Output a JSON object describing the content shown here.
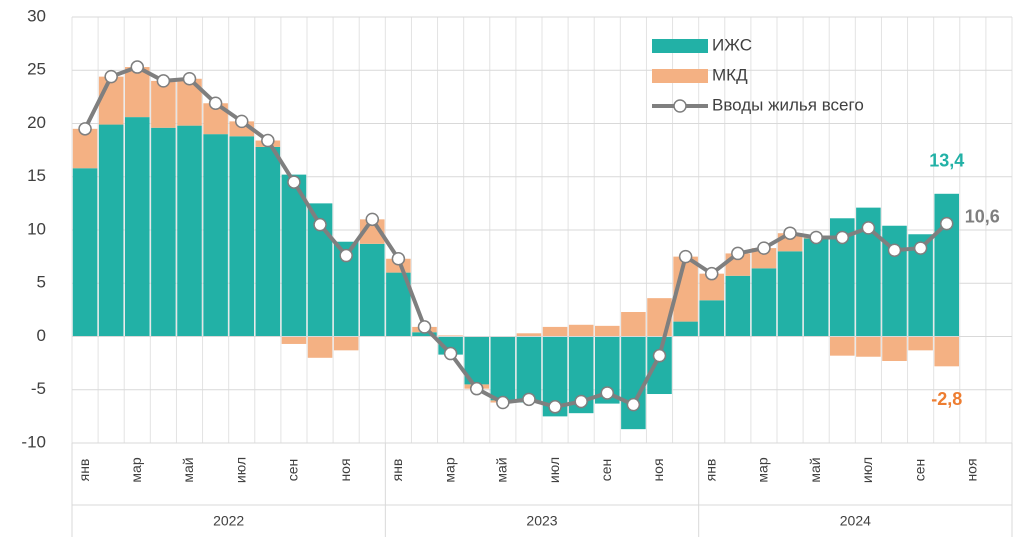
{
  "chart_data": {
    "type": "bar",
    "stacked": true,
    "categories": [
      "янв",
      null,
      "мар",
      null,
      "май",
      null,
      "июл",
      null,
      "сен",
      null,
      "ноя",
      null,
      "янв",
      null,
      "мар",
      null,
      "май",
      null,
      "июл",
      null,
      "сен",
      null,
      "ноя",
      null,
      "янв",
      null,
      "мар",
      null,
      "май",
      null,
      "июл",
      null,
      "сен",
      null,
      "ноя",
      null
    ],
    "years": [
      "2022",
      "2023",
      "2024"
    ],
    "ylim": [
      -10,
      30
    ],
    "yticks": [
      -10,
      -5,
      0,
      5,
      10,
      15,
      20,
      25,
      30
    ],
    "grid": true,
    "legend": "top-right",
    "series": [
      {
        "name": "ИЖС",
        "type": "bar",
        "color": "#22b1a6",
        "values": [
          15.8,
          19.9,
          20.6,
          19.6,
          19.8,
          19.0,
          18.8,
          17.8,
          15.2,
          12.5,
          8.9,
          8.7,
          6.0,
          0.4,
          -1.7,
          -4.5,
          -6.0,
          -6.2,
          -7.5,
          -7.2,
          -6.3,
          -8.7,
          -5.4,
          1.4,
          3.4,
          5.7,
          6.4,
          8.0,
          9.2,
          11.1,
          12.1,
          10.4,
          9.6,
          13.4,
          null,
          null
        ],
        "value_labels": [
          null,
          null,
          null,
          null,
          null,
          null,
          null,
          null,
          null,
          null,
          null,
          null,
          null,
          null,
          null,
          null,
          null,
          null,
          null,
          null,
          null,
          null,
          null,
          null,
          null,
          null,
          null,
          null,
          null,
          null,
          null,
          null,
          null,
          "13,4",
          null,
          null
        ]
      },
      {
        "name": "МКД",
        "type": "bar",
        "color": "#f4b183",
        "values": [
          3.7,
          4.5,
          4.7,
          4.4,
          4.4,
          2.9,
          1.4,
          0.6,
          -0.7,
          -2.0,
          -1.3,
          2.3,
          1.3,
          0.5,
          0.1,
          -0.4,
          -0.2,
          0.3,
          0.9,
          1.1,
          1.0,
          2.3,
          3.6,
          6.1,
          2.5,
          2.1,
          1.9,
          1.7,
          0.1,
          -1.8,
          -1.9,
          -2.3,
          -1.3,
          -2.8,
          null,
          null
        ],
        "value_labels": [
          null,
          null,
          null,
          null,
          null,
          null,
          null,
          null,
          null,
          null,
          null,
          null,
          null,
          null,
          null,
          null,
          null,
          null,
          null,
          null,
          null,
          null,
          null,
          null,
          null,
          null,
          null,
          null,
          null,
          null,
          null,
          null,
          null,
          "-2,8",
          null,
          null
        ]
      },
      {
        "name": "Вводы жилья всего",
        "type": "line",
        "color": "#7f7f7f",
        "values": [
          19.5,
          24.4,
          25.3,
          24.0,
          24.2,
          21.9,
          20.2,
          18.4,
          14.5,
          10.5,
          7.6,
          11.0,
          7.3,
          0.9,
          -1.6,
          -4.9,
          -6.2,
          -5.9,
          -6.6,
          -6.1,
          -5.3,
          -6.4,
          -1.8,
          7.5,
          5.9,
          7.8,
          8.3,
          9.7,
          9.3,
          9.3,
          10.2,
          8.1,
          8.3,
          10.6,
          null,
          null
        ],
        "value_labels": [
          null,
          null,
          null,
          null,
          null,
          null,
          null,
          null,
          null,
          null,
          null,
          null,
          null,
          null,
          null,
          null,
          null,
          null,
          null,
          null,
          null,
          null,
          null,
          null,
          null,
          null,
          null,
          null,
          null,
          null,
          null,
          null,
          null,
          "10,6",
          null,
          null
        ]
      }
    ]
  }
}
